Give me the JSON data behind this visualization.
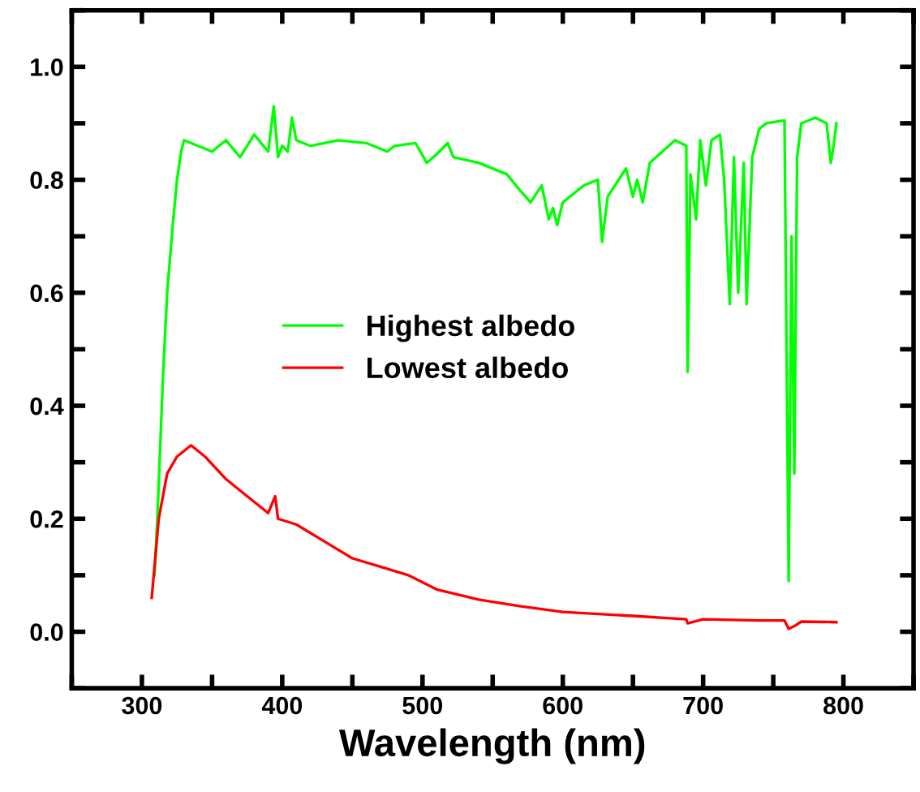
{
  "chart_data": {
    "type": "line",
    "xlabel": "Wavelength (nm)",
    "xlim": [
      250,
      850
    ],
    "ylim": [
      -0.1,
      1.1
    ],
    "xticks": [
      {
        "value": 250,
        "label": null
      },
      300,
      {
        "value": 350,
        "label": null
      },
      400,
      {
        "value": 450,
        "label": null
      },
      500,
      {
        "value": 550,
        "label": null
      },
      600,
      {
        "value": 650,
        "label": null
      },
      700,
      {
        "value": 750,
        "label": null
      },
      800,
      {
        "value": 850,
        "label": null
      }
    ],
    "yticks": [
      {
        "value": -0.1,
        "label": null
      },
      {
        "value": 0,
        "label": "0.0"
      },
      {
        "value": 0.1,
        "label": null
      },
      {
        "value": 0.2,
        "label": "0.2"
      },
      {
        "value": 0.3,
        "label": null
      },
      {
        "value": 0.4,
        "label": "0.4"
      },
      {
        "value": 0.5,
        "label": null
      },
      {
        "value": 0.6,
        "label": "0.6"
      },
      {
        "value": 0.7,
        "label": null
      },
      {
        "value": 0.8,
        "label": "0.8"
      },
      {
        "value": 0.9,
        "label": null
      },
      {
        "value": 1.0,
        "label": "1.0"
      },
      {
        "value": 1.1,
        "label": null
      }
    ],
    "grid": false,
    "legend": "center",
    "line_style": "solid",
    "marker": "none",
    "series": [
      {
        "name": "Highest albedo",
        "color": "#00ff00",
        "x": [
          309,
          311,
          315,
          318,
          322,
          325,
          328,
          330,
          340,
          350,
          360,
          370,
          380,
          390,
          394,
          397,
          400,
          404,
          407,
          410,
          420,
          440,
          460,
          475,
          480,
          495,
          503,
          510,
          518,
          522,
          540,
          560,
          570,
          577,
          585,
          590,
          593,
          596,
          600,
          615,
          625,
          628,
          632,
          645,
          650,
          653,
          657,
          662,
          680,
          688,
          689,
          691,
          695,
          698,
          702,
          706,
          712,
          715,
          719,
          722,
          725,
          729,
          731,
          735,
          740,
          745,
          758,
          761,
          763,
          765,
          767,
          770,
          780,
          788,
          791,
          793,
          795
        ],
        "values": [
          0.1,
          0.2,
          0.45,
          0.6,
          0.72,
          0.8,
          0.85,
          0.87,
          0.86,
          0.85,
          0.87,
          0.84,
          0.88,
          0.85,
          0.93,
          0.84,
          0.86,
          0.85,
          0.91,
          0.87,
          0.86,
          0.87,
          0.865,
          0.85,
          0.86,
          0.865,
          0.83,
          0.845,
          0.865,
          0.84,
          0.83,
          0.81,
          0.78,
          0.76,
          0.79,
          0.73,
          0.75,
          0.72,
          0.76,
          0.79,
          0.8,
          0.69,
          0.77,
          0.82,
          0.77,
          0.8,
          0.76,
          0.83,
          0.87,
          0.86,
          0.46,
          0.81,
          0.73,
          0.87,
          0.79,
          0.87,
          0.88,
          0.8,
          0.58,
          0.84,
          0.6,
          0.83,
          0.58,
          0.84,
          0.89,
          0.9,
          0.905,
          0.09,
          0.7,
          0.28,
          0.84,
          0.9,
          0.91,
          0.9,
          0.83,
          0.86,
          0.9
        ]
      },
      {
        "name": "Lowest albedo",
        "color": "#ff0000",
        "x": [
          307,
          312,
          318,
          325,
          335,
          345,
          360,
          375,
          390,
          395,
          397,
          410,
          430,
          450,
          470,
          490,
          510,
          540,
          570,
          600,
          650,
          688,
          689,
          700,
          740,
          758,
          761,
          765,
          770,
          795
        ],
        "values": [
          0.06,
          0.2,
          0.28,
          0.31,
          0.33,
          0.31,
          0.27,
          0.24,
          0.21,
          0.24,
          0.2,
          0.19,
          0.16,
          0.13,
          0.115,
          0.1,
          0.075,
          0.057,
          0.045,
          0.035,
          0.028,
          0.022,
          0.015,
          0.022,
          0.02,
          0.02,
          0.005,
          0.01,
          0.018,
          0.017
        ]
      }
    ]
  }
}
